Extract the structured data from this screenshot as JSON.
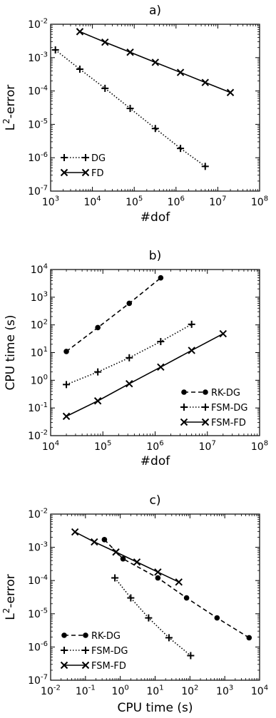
{
  "chart_data": [
    {
      "type": "line",
      "title": "a)",
      "xlabel": "#dof",
      "ylabel_base": "L",
      "ylabel_sup": "2",
      "ylabel_rest": "-error",
      "xscale": "log",
      "yscale": "log",
      "xlim": [
        1000,
        100000000
      ],
      "ylim": [
        1e-07,
        0.01
      ],
      "xticks": [
        {
          "v": 1000,
          "b": "10",
          "e": "3"
        },
        {
          "v": 10000,
          "b": "10",
          "e": "4"
        },
        {
          "v": 100000,
          "b": "10",
          "e": "5"
        },
        {
          "v": 1000000,
          "b": "10",
          "e": "6"
        },
        {
          "v": 10000000,
          "b": "10",
          "e": "7"
        },
        {
          "v": 100000000,
          "b": "10",
          "e": "8"
        }
      ],
      "yticks": [
        {
          "v": 1e-07,
          "b": "10",
          "e": "-7"
        },
        {
          "v": 1e-06,
          "b": "10",
          "e": "-6"
        },
        {
          "v": 1e-05,
          "b": "10",
          "e": "-5"
        },
        {
          "v": 0.0001,
          "b": "10",
          "e": "-4"
        },
        {
          "v": 0.001,
          "b": "10",
          "e": "-3"
        },
        {
          "v": 0.01,
          "b": "10",
          "e": "-2"
        }
      ],
      "grid": false,
      "legend_position": "lower-left",
      "series": [
        {
          "name": "DG",
          "marker": "plus",
          "line": "dotted",
          "x": [
            1300,
            5000,
            20000,
            80000,
            320000,
            1280000,
            5000000
          ],
          "y": [
            0.0017,
            0.00045,
            0.00012,
            3e-05,
            7.5e-06,
            1.9e-06,
            5.5e-07
          ]
        },
        {
          "name": "FD",
          "marker": "x",
          "line": "solid",
          "x": [
            5000,
            20000,
            80000,
            320000,
            1280000,
            5000000,
            20000000
          ],
          "y": [
            0.006,
            0.0029,
            0.00145,
            0.00072,
            0.00036,
            0.00018,
            9e-05
          ]
        }
      ]
    },
    {
      "type": "line",
      "title": "b)",
      "xlabel": "#dof",
      "ylabel": "CPU time (s)",
      "xscale": "log",
      "yscale": "log",
      "xlim": [
        10000,
        100000000
      ],
      "ylim": [
        0.01,
        10000
      ],
      "xticks": [
        {
          "v": 10000,
          "b": "10",
          "e": "4"
        },
        {
          "v": 100000,
          "b": "10",
          "e": "5"
        },
        {
          "v": 1000000,
          "b": "10",
          "e": "6"
        },
        {
          "v": 10000000,
          "b": "10",
          "e": "7"
        },
        {
          "v": 100000000,
          "b": "10",
          "e": "8"
        }
      ],
      "yticks": [
        {
          "v": 0.01,
          "b": "10",
          "e": "-2"
        },
        {
          "v": 0.1,
          "b": "10",
          "e": "-1"
        },
        {
          "v": 1,
          "b": "10",
          "e": "0"
        },
        {
          "v": 10,
          "b": "10",
          "e": "1"
        },
        {
          "v": 100,
          "b": "10",
          "e": "2"
        },
        {
          "v": 1000,
          "b": "10",
          "e": "3"
        },
        {
          "v": 10000,
          "b": "10",
          "e": "4"
        }
      ],
      "grid": false,
      "legend_position": "lower-right",
      "series": [
        {
          "name": "RK-DG",
          "marker": "dot",
          "line": "dashed",
          "x": [
            20000,
            80000,
            320000,
            1280000
          ],
          "y": [
            11,
            80,
            600,
            5000
          ]
        },
        {
          "name": "FSM-DG",
          "marker": "plus",
          "line": "dotted",
          "x": [
            20000,
            80000,
            320000,
            1280000,
            5000000
          ],
          "y": [
            0.7,
            2,
            6.5,
            25,
            105
          ]
        },
        {
          "name": "FSM-FD",
          "marker": "x",
          "line": "solid",
          "x": [
            20000,
            80000,
            320000,
            1280000,
            5000000,
            20000000
          ],
          "y": [
            0.05,
            0.18,
            0.75,
            3,
            12,
            48
          ]
        }
      ]
    },
    {
      "type": "line",
      "title": "c)",
      "xlabel": "CPU time (s)",
      "ylabel_base": "L",
      "ylabel_sup": "2",
      "ylabel_rest": "-error",
      "xscale": "log",
      "yscale": "log",
      "xlim": [
        0.01,
        10000
      ],
      "ylim": [
        1e-07,
        0.01
      ],
      "xticks": [
        {
          "v": 0.01,
          "b": "10",
          "e": "-2"
        },
        {
          "v": 0.1,
          "b": "10",
          "e": "-1"
        },
        {
          "v": 1,
          "b": "10",
          "e": "0"
        },
        {
          "v": 10,
          "b": "10",
          "e": "1"
        },
        {
          "v": 100,
          "b": "10",
          "e": "2"
        },
        {
          "v": 1000,
          "b": "10",
          "e": "3"
        },
        {
          "v": 10000,
          "b": "10",
          "e": "4"
        }
      ],
      "yticks": [
        {
          "v": 1e-07,
          "b": "10",
          "e": "-7"
        },
        {
          "v": 1e-06,
          "b": "10",
          "e": "-6"
        },
        {
          "v": 1e-05,
          "b": "10",
          "e": "-5"
        },
        {
          "v": 0.0001,
          "b": "10",
          "e": "-4"
        },
        {
          "v": 0.001,
          "b": "10",
          "e": "-3"
        },
        {
          "v": 0.01,
          "b": "10",
          "e": "-2"
        }
      ],
      "grid": false,
      "legend_position": "lower-left",
      "series": [
        {
          "name": "RK-DG",
          "marker": "dot",
          "line": "dashed",
          "x": [
            0.35,
            1.2,
            12,
            80,
            600,
            5000
          ],
          "y": [
            0.0017,
            0.00045,
            0.00012,
            3e-05,
            7.5e-06,
            1.9e-06
          ]
        },
        {
          "name": "FSM-DG",
          "marker": "plus",
          "line": "dotted",
          "x": [
            0.7,
            2,
            6.5,
            25,
            105
          ],
          "y": [
            0.00012,
            3e-05,
            7.5e-06,
            1.9e-06,
            5.5e-07
          ]
        },
        {
          "name": "FSM-FD",
          "marker": "x",
          "line": "solid",
          "x": [
            0.05,
            0.18,
            0.75,
            3,
            12,
            48
          ],
          "y": [
            0.0029,
            0.00145,
            0.00072,
            0.00036,
            0.00018,
            9e-05
          ]
        }
      ]
    }
  ]
}
